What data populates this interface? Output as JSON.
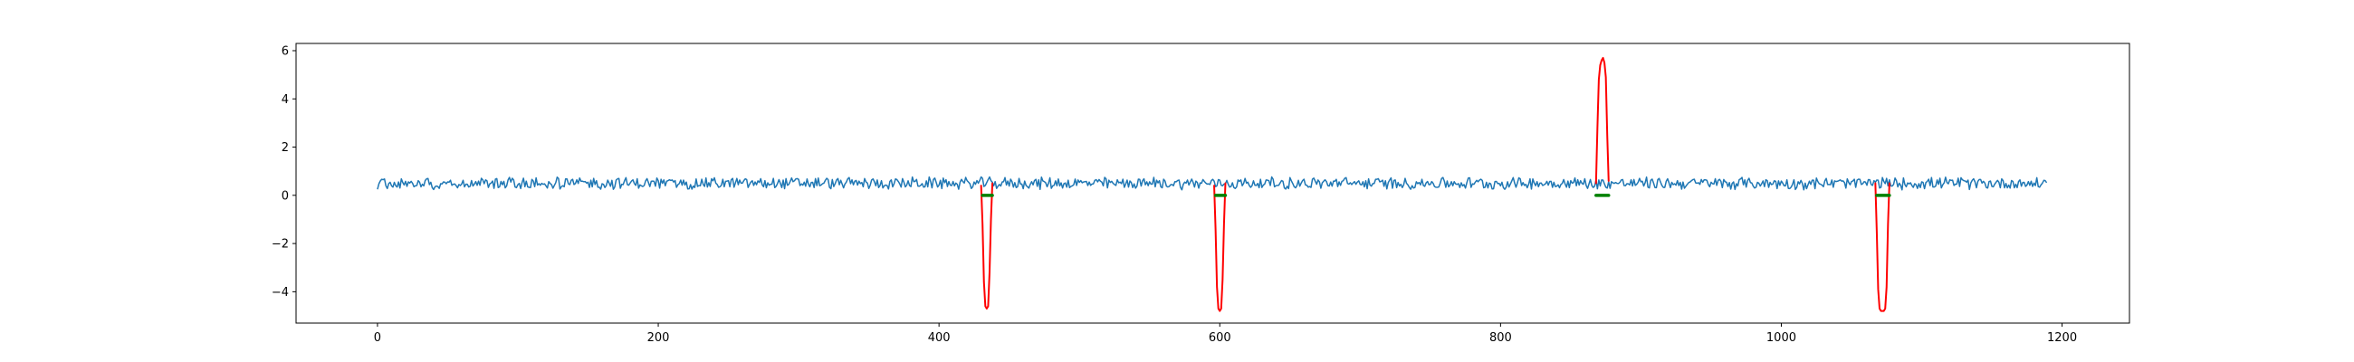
{
  "chart_data": {
    "type": "line",
    "title": "",
    "xlabel": "",
    "ylabel": "",
    "xlim": [
      -58,
      1248
    ],
    "ylim": [
      -5.3,
      6.3
    ],
    "grid": false,
    "x_ticks": [
      0,
      200,
      400,
      600,
      800,
      1000,
      1200
    ],
    "y_ticks": [
      -4,
      -2,
      0,
      2,
      4,
      6
    ],
    "series": [
      {
        "color": "#1f77b4",
        "kind": "signal",
        "x_start": 0,
        "x_end": 1189,
        "baseline": 0.5,
        "noise_amplitude": 0.28
      },
      {
        "color": "#ff0000",
        "kind": "anomaly_segments",
        "segments": [
          {
            "x": [
              430,
              431,
              432,
              433,
              434,
              435,
              436,
              437,
              438
            ],
            "y": [
              0.4,
              -1.2,
              -3.6,
              -4.6,
              -4.7,
              -4.6,
              -3.2,
              -1.0,
              0.5
            ]
          },
          {
            "x": [
              596,
              597,
              598,
              599,
              600,
              601,
              602,
              603,
              604
            ],
            "y": [
              0.4,
              -1.4,
              -3.8,
              -4.7,
              -4.8,
              -4.7,
              -3.5,
              -1.2,
              0.5
            ]
          },
          {
            "x": [
              868,
              869,
              870,
              871,
              872,
              873,
              874,
              875,
              876,
              877
            ],
            "y": [
              0.5,
              2.8,
              4.8,
              5.4,
              5.6,
              5.7,
              5.5,
              4.9,
              2.5,
              0.6
            ]
          },
          {
            "x": [
              1067,
              1068,
              1069,
              1070,
              1071,
              1072,
              1073,
              1074,
              1075,
              1076,
              1077
            ],
            "y": [
              0.5,
              -1.5,
              -3.9,
              -4.7,
              -4.8,
              -4.8,
              -4.8,
              -4.7,
              -3.8,
              -1.2,
              0.5
            ]
          }
        ]
      },
      {
        "color": "#008000",
        "kind": "baseline_markers",
        "segments": [
          {
            "x": [
              431,
              438
            ],
            "y": [
              0.0,
              0.0
            ]
          },
          {
            "x": [
              597,
              604
            ],
            "y": [
              0.0,
              0.0
            ]
          },
          {
            "x": [
              868,
              877
            ],
            "y": [
              0.0,
              0.0
            ]
          },
          {
            "x": [
              1068,
              1077
            ],
            "y": [
              0.0,
              0.0
            ]
          }
        ]
      }
    ]
  }
}
